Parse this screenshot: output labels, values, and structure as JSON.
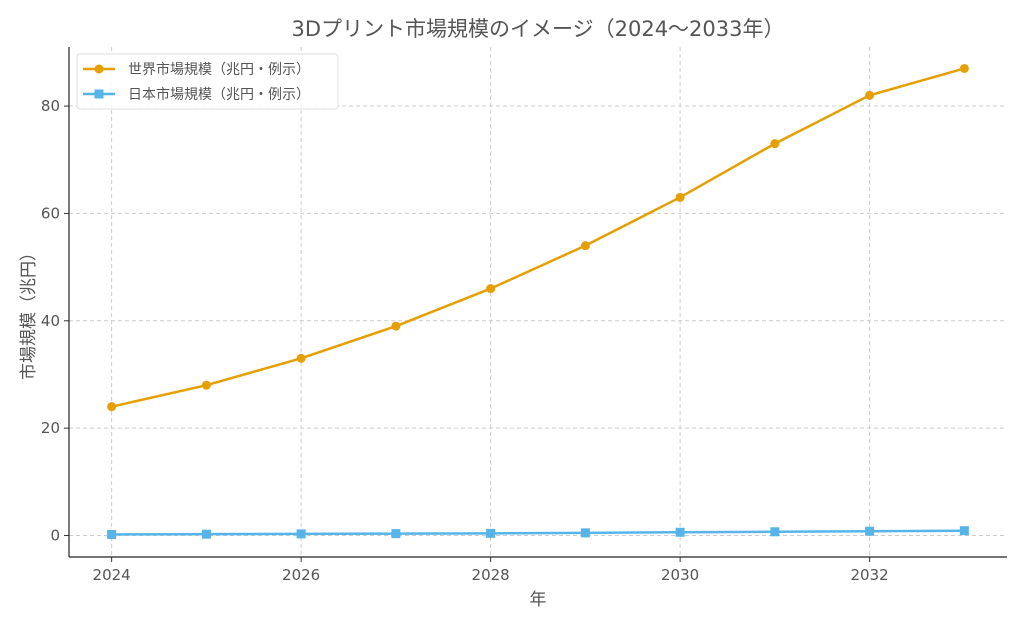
{
  "chart_data": {
    "type": "line",
    "title": "3Dプリント市場規模のイメージ（2024〜2033年）",
    "xlabel": "年",
    "ylabel": "市場規模（兆円）",
    "x": [
      2024,
      2025,
      2026,
      2027,
      2028,
      2029,
      2030,
      2031,
      2032,
      2033
    ],
    "xticks": [
      2024,
      2026,
      2028,
      2030,
      2032
    ],
    "yticks": [
      0,
      20,
      40,
      60,
      80
    ],
    "xlim": [
      2023.55,
      2033.45
    ],
    "ylim": [
      -4,
      91
    ],
    "grid": true,
    "legend_position": "top-left",
    "series": [
      {
        "name": "世界市場規模（兆円・例示）",
        "color": "#E69F00",
        "marker": "circle",
        "values": [
          24,
          28,
          33,
          39,
          46,
          54,
          63,
          73,
          82,
          87
        ]
      },
      {
        "name": "日本市場規模（兆円・例示）",
        "color": "#56B4E9",
        "marker": "square",
        "values": [
          0.2,
          0.25,
          0.3,
          0.35,
          0.4,
          0.5,
          0.6,
          0.7,
          0.8,
          0.9
        ]
      }
    ]
  }
}
